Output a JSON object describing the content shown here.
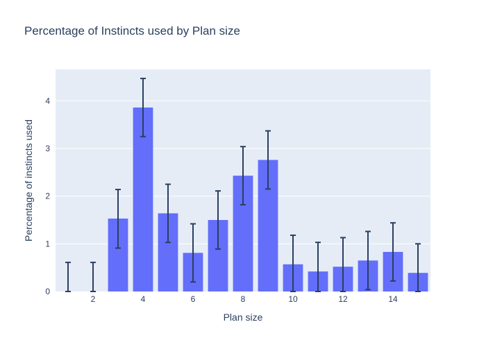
{
  "chart_data": {
    "type": "bar",
    "title": "Percentage of Instincts used by Plan size",
    "xlabel": "Plan size",
    "ylabel": "Percentage of instincts used",
    "x": [
      1,
      2,
      3,
      4,
      5,
      6,
      7,
      8,
      9,
      10,
      11,
      12,
      13,
      14,
      15
    ],
    "values": [
      0.0,
      0.0,
      1.53,
      3.86,
      1.64,
      0.81,
      1.5,
      2.43,
      2.76,
      0.57,
      0.42,
      0.52,
      0.65,
      0.83,
      0.39
    ],
    "error_low": [
      0.0,
      0.0,
      0.91,
      3.25,
      1.03,
      0.2,
      0.89,
      1.82,
      2.15,
      0.0,
      0.0,
      0.0,
      0.04,
      0.22,
      0.0
    ],
    "error_high": [
      0.61,
      0.61,
      2.14,
      4.47,
      2.25,
      1.42,
      2.11,
      3.04,
      3.37,
      1.18,
      1.03,
      1.13,
      1.26,
      1.44,
      1.0
    ],
    "xlim": [
      0.5,
      15.5
    ],
    "ylim": [
      0,
      4.66
    ],
    "xticks": [
      2,
      4,
      6,
      8,
      10,
      12,
      14
    ],
    "yticks": [
      0,
      1,
      2,
      3,
      4
    ],
    "grid": true,
    "colors": {
      "bar": "#636efa",
      "error": "#2a3f5f",
      "plot_bg": "#e5ecf6",
      "grid": "#ffffff",
      "text": "#2a3f5f"
    }
  }
}
